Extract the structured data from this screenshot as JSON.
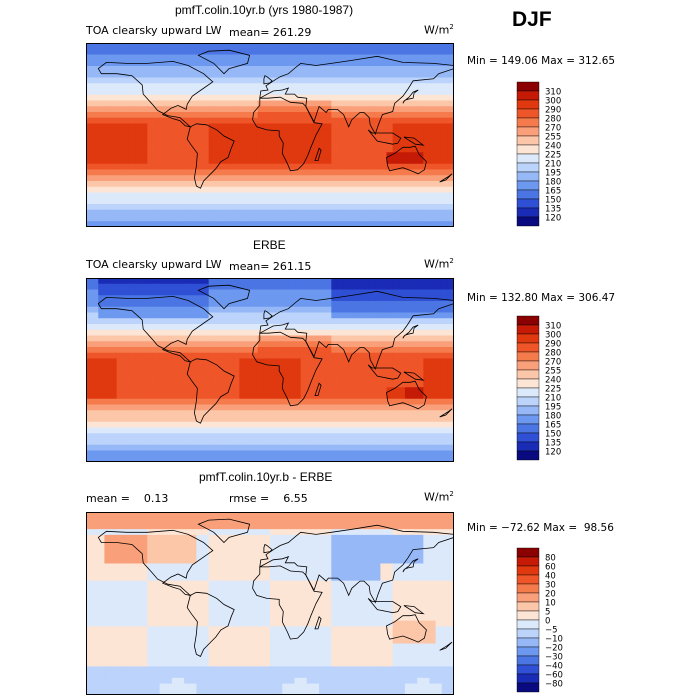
{
  "season": "DJF",
  "chart_data": [
    {
      "type": "heatmap",
      "title": "pmfT.colin.10yr.b (yrs 1980-1987)",
      "variable": "TOA clearsky upward LW",
      "mean_label": "mean= 261.29",
      "units_text": "W/m",
      "units_exponent": "2",
      "minmax_label": "Min = 149.06 Max = 312.65",
      "min": 149.06,
      "max": 312.65,
      "mean": 261.29,
      "levels": [
        "310",
        "300",
        "290",
        "280",
        "270",
        "255",
        "240",
        "225",
        "210",
        "195",
        "180",
        "165",
        "150",
        "135",
        "120"
      ],
      "colors": [
        "#8b0000",
        "#c41a06",
        "#e0380f",
        "#ee5528",
        "#f57a4c",
        "#f9a07a",
        "#fcc6a8",
        "#fde5d6",
        "#dce9fb",
        "#bcd3fb",
        "#96b8f7",
        "#6d98ef",
        "#4a75e3",
        "#2f4fd4",
        "#1a2bb6",
        "#0a0a80"
      ],
      "pattern": "model"
    },
    {
      "type": "heatmap",
      "title": "ERBE",
      "variable": "TOA clearsky upward LW",
      "mean_label": "mean= 261.15",
      "units_text": "W/m",
      "units_exponent": "2",
      "minmax_label": "Min = 132.80 Max = 306.47",
      "min": 132.8,
      "max": 306.47,
      "mean": 261.15,
      "levels": [
        "310",
        "300",
        "290",
        "280",
        "270",
        "255",
        "240",
        "225",
        "210",
        "195",
        "180",
        "165",
        "150",
        "135",
        "120"
      ],
      "colors": [
        "#8b0000",
        "#c41a06",
        "#e0380f",
        "#ee5528",
        "#f57a4c",
        "#f9a07a",
        "#fcc6a8",
        "#fde5d6",
        "#dce9fb",
        "#bcd3fb",
        "#96b8f7",
        "#6d98ef",
        "#4a75e3",
        "#2f4fd4",
        "#1a2bb6",
        "#0a0a80"
      ],
      "pattern": "obs"
    },
    {
      "type": "heatmap",
      "title": "pmfT.colin.10yr.b - ERBE",
      "variable": "",
      "mean_label": "mean =    0.13",
      "rmse_label": "rmse =    6.55",
      "units_text": "W/m",
      "units_exponent": "2",
      "minmax_label": "Min = −72.62 Max =  98.56",
      "min": -72.62,
      "max": 98.56,
      "mean": 0.13,
      "rmse": 6.55,
      "levels": [
        "80",
        "60",
        "40",
        "30",
        "20",
        "10",
        "5",
        "0",
        "−5",
        "−10",
        "−20",
        "−30",
        "−40",
        "−60",
        "−80"
      ],
      "colors": [
        "#8b0000",
        "#c41a06",
        "#e0380f",
        "#ee5528",
        "#f57a4c",
        "#f9a07a",
        "#fcc6a8",
        "#fde5d6",
        "#dce9fb",
        "#bcd3fb",
        "#96b8f7",
        "#6d98ef",
        "#4a75e3",
        "#2f4fd4",
        "#1a2bb6",
        "#0a0a80"
      ],
      "pattern": "diff"
    }
  ]
}
